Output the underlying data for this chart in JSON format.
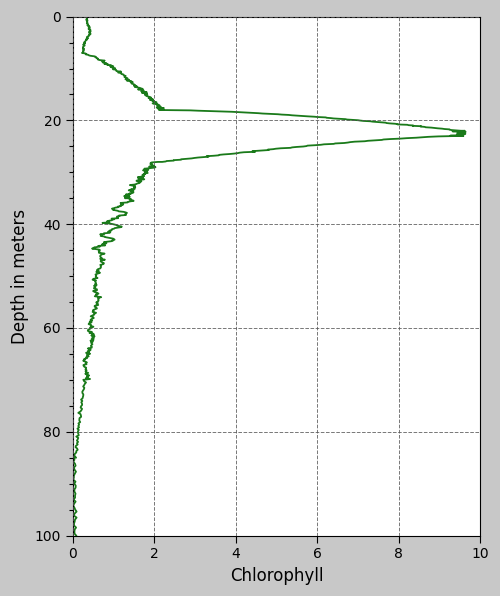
{
  "title": "",
  "xlabel": "Chlorophyll",
  "ylabel": "Depth in meters",
  "xlim": [
    0,
    10
  ],
  "ylim": [
    100,
    0
  ],
  "xticks": [
    0,
    2,
    4,
    6,
    8,
    10
  ],
  "yticks": [
    0,
    20,
    40,
    60,
    80,
    100
  ],
  "line_color": "#1a7a1a",
  "background_color": "#c8c8c8",
  "plot_bg_color": "#ffffff",
  "grid_color": "#555555",
  "grid_style": "--",
  "line_width": 1.3
}
